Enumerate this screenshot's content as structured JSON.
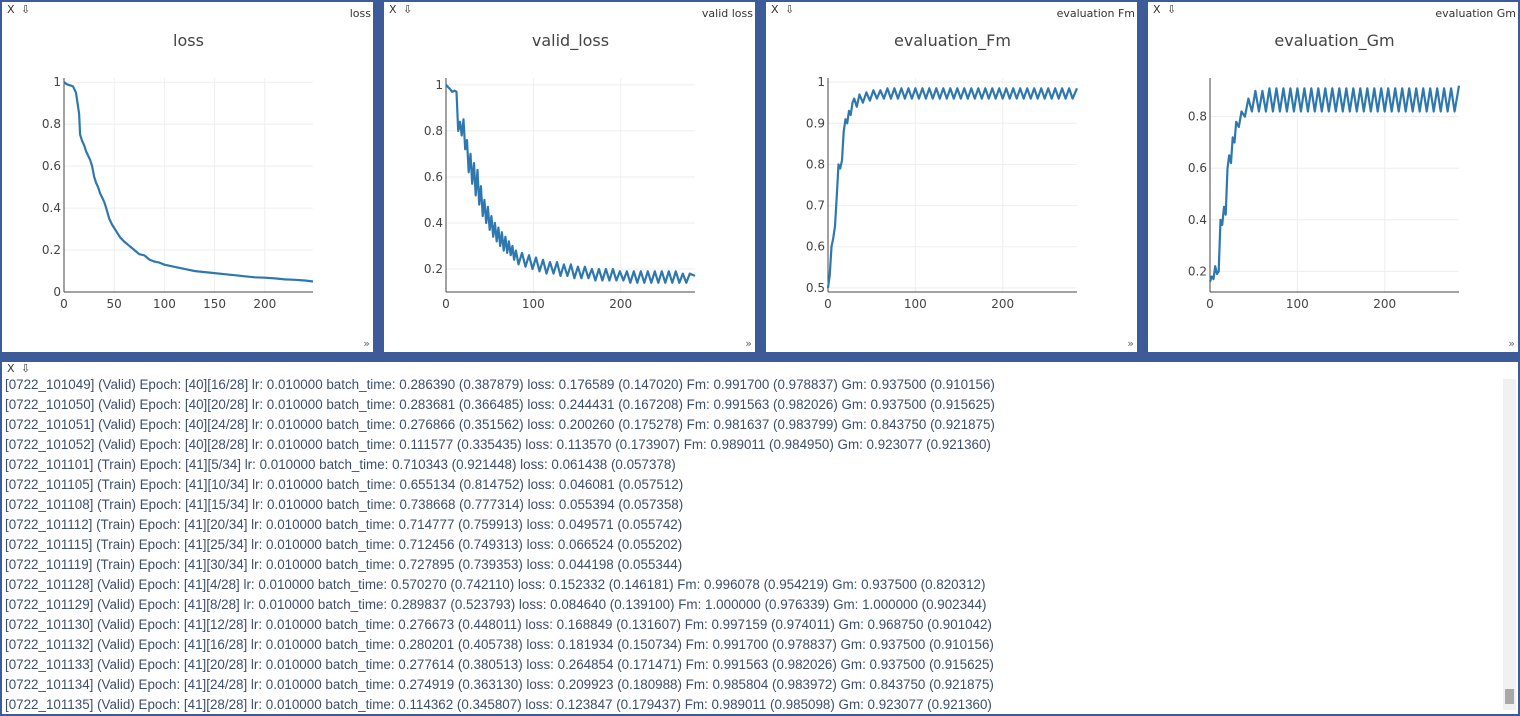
{
  "panes": {
    "close_label": "X",
    "download_label": "⇩",
    "resize_label": "»"
  },
  "charts": [
    {
      "id": "loss",
      "title": "loss"
    },
    {
      "id": "valid  loss",
      "title": "valid_loss"
    },
    {
      "id": "evaluation  Fm",
      "title": "evaluation_Fm"
    },
    {
      "id": "evaluation  Gm",
      "title": "evaluation_Gm"
    }
  ],
  "chart_data": [
    {
      "type": "line",
      "title": "loss",
      "xlabel": "",
      "ylabel": "",
      "xlim": [
        0,
        248
      ],
      "ylim": [
        0,
        1.02
      ],
      "xticks": [
        0,
        50,
        100,
        150,
        200
      ],
      "yticks": [
        0,
        0.2,
        0.4,
        0.6,
        0.8,
        1
      ],
      "grid": true,
      "color": "#2e78b0",
      "x": [
        0,
        3,
        6,
        9,
        12,
        15,
        16,
        18,
        20,
        22,
        24,
        26,
        28,
        30,
        32,
        34,
        36,
        38,
        40,
        42,
        45,
        48,
        52,
        56,
        60,
        65,
        70,
        75,
        80,
        85,
        90,
        95,
        100,
        110,
        120,
        130,
        140,
        150,
        160,
        170,
        180,
        190,
        200,
        210,
        220,
        230,
        240,
        248
      ],
      "y": [
        1.0,
        0.99,
        0.985,
        0.98,
        0.95,
        0.85,
        0.75,
        0.72,
        0.7,
        0.67,
        0.65,
        0.63,
        0.6,
        0.55,
        0.52,
        0.5,
        0.47,
        0.45,
        0.43,
        0.4,
        0.35,
        0.32,
        0.29,
        0.26,
        0.24,
        0.22,
        0.2,
        0.18,
        0.175,
        0.155,
        0.145,
        0.14,
        0.13,
        0.12,
        0.11,
        0.1,
        0.095,
        0.09,
        0.085,
        0.08,
        0.075,
        0.07,
        0.068,
        0.065,
        0.06,
        0.058,
        0.055,
        0.05
      ]
    },
    {
      "type": "line",
      "title": "valid_loss",
      "xlabel": "",
      "ylabel": "",
      "xlim": [
        0,
        285
      ],
      "ylim": [
        0.1,
        1.03
      ],
      "xticks": [
        0,
        100,
        200
      ],
      "yticks": [
        0.2,
        0.4,
        0.6,
        0.8,
        1
      ],
      "grid": true,
      "color": "#2e78b0",
      "x": [
        0,
        5,
        7,
        10,
        12,
        14,
        16,
        18,
        20,
        22,
        24,
        26,
        28,
        30,
        32,
        34,
        36,
        38,
        40,
        42,
        44,
        46,
        48,
        50,
        52,
        54,
        56,
        58,
        60,
        62,
        64,
        66,
        68,
        70,
        72,
        74,
        76,
        78,
        80,
        83,
        87,
        91,
        95,
        99,
        103,
        107,
        111,
        115,
        119,
        123,
        127,
        131,
        135,
        139,
        143,
        147,
        151,
        155,
        159,
        163,
        167,
        171,
        175,
        179,
        183,
        187,
        191,
        195,
        199,
        203,
        207,
        211,
        215,
        219,
        223,
        227,
        231,
        235,
        239,
        243,
        247,
        251,
        255,
        259,
        263,
        267,
        271,
        275,
        279,
        285
      ],
      "y": [
        1.0,
        0.98,
        0.97,
        0.975,
        0.97,
        0.8,
        0.84,
        0.78,
        0.85,
        0.72,
        0.76,
        0.62,
        0.7,
        0.57,
        0.66,
        0.52,
        0.63,
        0.48,
        0.56,
        0.43,
        0.5,
        0.4,
        0.47,
        0.37,
        0.43,
        0.34,
        0.4,
        0.32,
        0.38,
        0.3,
        0.36,
        0.28,
        0.34,
        0.27,
        0.32,
        0.26,
        0.3,
        0.24,
        0.28,
        0.22,
        0.27,
        0.21,
        0.26,
        0.2,
        0.25,
        0.19,
        0.24,
        0.18,
        0.23,
        0.18,
        0.23,
        0.17,
        0.22,
        0.17,
        0.22,
        0.16,
        0.21,
        0.16,
        0.21,
        0.16,
        0.2,
        0.15,
        0.2,
        0.15,
        0.2,
        0.15,
        0.2,
        0.15,
        0.19,
        0.15,
        0.19,
        0.14,
        0.19,
        0.14,
        0.19,
        0.14,
        0.19,
        0.14,
        0.19,
        0.14,
        0.19,
        0.14,
        0.19,
        0.14,
        0.19,
        0.14,
        0.18,
        0.14,
        0.18,
        0.17
      ]
    },
    {
      "type": "line",
      "title": "evaluation_Fm",
      "xlabel": "",
      "ylabel": "",
      "xlim": [
        0,
        285
      ],
      "ylim": [
        0.49,
        1.01
      ],
      "xticks": [
        0,
        100,
        200
      ],
      "yticks": [
        0.5,
        0.6,
        0.7,
        0.8,
        0.9,
        1
      ],
      "grid": true,
      "color": "#2e78b0",
      "x": [
        0,
        2,
        4,
        6,
        8,
        10,
        12,
        14,
        16,
        18,
        20,
        22,
        24,
        26,
        28,
        30,
        33,
        36,
        40,
        44,
        48,
        52,
        56,
        60,
        64,
        68,
        72,
        76,
        80,
        84,
        88,
        92,
        96,
        100,
        104,
        108,
        112,
        116,
        120,
        124,
        128,
        132,
        136,
        140,
        144,
        148,
        152,
        156,
        160,
        164,
        168,
        172,
        176,
        180,
        184,
        188,
        192,
        196,
        200,
        204,
        208,
        212,
        216,
        220,
        224,
        228,
        232,
        236,
        240,
        244,
        248,
        252,
        256,
        260,
        264,
        268,
        272,
        276,
        280,
        285
      ],
      "y": [
        0.5,
        0.53,
        0.6,
        0.62,
        0.65,
        0.72,
        0.8,
        0.79,
        0.81,
        0.88,
        0.91,
        0.9,
        0.93,
        0.92,
        0.95,
        0.96,
        0.94,
        0.97,
        0.95,
        0.975,
        0.955,
        0.98,
        0.96,
        0.98,
        0.96,
        0.985,
        0.96,
        0.985,
        0.96,
        0.985,
        0.96,
        0.985,
        0.96,
        0.985,
        0.96,
        0.985,
        0.96,
        0.985,
        0.96,
        0.985,
        0.96,
        0.985,
        0.96,
        0.985,
        0.96,
        0.985,
        0.96,
        0.985,
        0.96,
        0.985,
        0.96,
        0.985,
        0.96,
        0.985,
        0.96,
        0.985,
        0.96,
        0.985,
        0.96,
        0.985,
        0.96,
        0.985,
        0.96,
        0.985,
        0.96,
        0.985,
        0.96,
        0.985,
        0.96,
        0.985,
        0.96,
        0.985,
        0.96,
        0.985,
        0.96,
        0.985,
        0.96,
        0.985,
        0.96,
        0.985
      ]
    },
    {
      "type": "line",
      "title": "evaluation_Gm",
      "xlabel": "",
      "ylabel": "",
      "xlim": [
        0,
        285
      ],
      "ylim": [
        0.12,
        0.95
      ],
      "xticks": [
        0,
        100,
        200
      ],
      "yticks": [
        0.2,
        0.4,
        0.6,
        0.8
      ],
      "grid": true,
      "color": "#2e78b0",
      "x": [
        0,
        2,
        4,
        6,
        8,
        10,
        12,
        14,
        16,
        18,
        20,
        22,
        24,
        26,
        28,
        30,
        33,
        36,
        40,
        44,
        48,
        52,
        56,
        60,
        64,
        68,
        72,
        76,
        80,
        84,
        88,
        92,
        96,
        100,
        104,
        108,
        112,
        116,
        120,
        124,
        128,
        132,
        136,
        140,
        144,
        148,
        152,
        156,
        160,
        164,
        168,
        172,
        176,
        180,
        184,
        188,
        192,
        196,
        200,
        204,
        208,
        212,
        216,
        220,
        224,
        228,
        232,
        236,
        240,
        244,
        248,
        252,
        256,
        260,
        264,
        268,
        272,
        276,
        280,
        285
      ],
      "y": [
        0.16,
        0.18,
        0.17,
        0.22,
        0.19,
        0.2,
        0.4,
        0.38,
        0.45,
        0.42,
        0.6,
        0.65,
        0.62,
        0.72,
        0.7,
        0.78,
        0.76,
        0.82,
        0.8,
        0.87,
        0.82,
        0.9,
        0.82,
        0.9,
        0.82,
        0.91,
        0.82,
        0.91,
        0.82,
        0.91,
        0.82,
        0.91,
        0.82,
        0.91,
        0.82,
        0.91,
        0.82,
        0.91,
        0.82,
        0.91,
        0.82,
        0.91,
        0.82,
        0.91,
        0.82,
        0.91,
        0.82,
        0.91,
        0.82,
        0.91,
        0.82,
        0.91,
        0.82,
        0.91,
        0.82,
        0.91,
        0.82,
        0.91,
        0.82,
        0.91,
        0.82,
        0.91,
        0.82,
        0.91,
        0.82,
        0.91,
        0.82,
        0.91,
        0.82,
        0.91,
        0.82,
        0.91,
        0.82,
        0.91,
        0.82,
        0.91,
        0.82,
        0.91,
        0.82,
        0.92
      ]
    }
  ],
  "log": {
    "lines": [
      "[0722_101049] (Valid) Epoch: [40][16/28] lr: 0.010000 batch_time: 0.286390 (0.387879) loss: 0.176589 (0.147020) Fm: 0.991700 (0.978837) Gm: 0.937500 (0.910156)",
      "[0722_101050] (Valid) Epoch: [40][20/28] lr: 0.010000 batch_time: 0.283681 (0.366485) loss: 0.244431 (0.167208) Fm: 0.991563 (0.982026) Gm: 0.937500 (0.915625)",
      "[0722_101051] (Valid) Epoch: [40][24/28] lr: 0.010000 batch_time: 0.276866 (0.351562) loss: 0.200260 (0.175278) Fm: 0.981637 (0.983799) Gm: 0.843750 (0.921875)",
      "[0722_101052] (Valid) Epoch: [40][28/28] lr: 0.010000 batch_time: 0.111577 (0.335435) loss: 0.113570 (0.173907) Fm: 0.989011 (0.984950) Gm: 0.923077 (0.921360)",
      "[0722_101101] (Train) Epoch: [41][5/34] lr: 0.010000 batch_time: 0.710343 (0.921448) loss: 0.061438 (0.057378)",
      "[0722_101105] (Train) Epoch: [41][10/34] lr: 0.010000 batch_time: 0.655134 (0.814752) loss: 0.046081 (0.057512)",
      "[0722_101108] (Train) Epoch: [41][15/34] lr: 0.010000 batch_time: 0.738668 (0.777314) loss: 0.055394 (0.057358)",
      "[0722_101112] (Train) Epoch: [41][20/34] lr: 0.010000 batch_time: 0.714777 (0.759913) loss: 0.049571 (0.055742)",
      "[0722_101115] (Train) Epoch: [41][25/34] lr: 0.010000 batch_time: 0.712456 (0.749313) loss: 0.066524 (0.055202)",
      "[0722_101119] (Train) Epoch: [41][30/34] lr: 0.010000 batch_time: 0.727895 (0.739353) loss: 0.044198 (0.055344)",
      "[0722_101128] (Valid) Epoch: [41][4/28] lr: 0.010000 batch_time: 0.570270 (0.742110) loss: 0.152332 (0.146181) Fm: 0.996078 (0.954219) Gm: 0.937500 (0.820312)",
      "[0722_101129] (Valid) Epoch: [41][8/28] lr: 0.010000 batch_time: 0.289837 (0.523793) loss: 0.084640 (0.139100) Fm: 1.000000 (0.976339) Gm: 1.000000 (0.902344)",
      "[0722_101130] (Valid) Epoch: [41][12/28] lr: 0.010000 batch_time: 0.276673 (0.448011) loss: 0.168849 (0.131607) Fm: 0.997159 (0.974011) Gm: 0.968750 (0.901042)",
      "[0722_101132] (Valid) Epoch: [41][16/28] lr: 0.010000 batch_time: 0.280201 (0.405738) loss: 0.181934 (0.150734) Fm: 0.991700 (0.978837) Gm: 0.937500 (0.910156)",
      "[0722_101133] (Valid) Epoch: [41][20/28] lr: 0.010000 batch_time: 0.277614 (0.380513) loss: 0.264854 (0.171471) Fm: 0.991563 (0.982026) Gm: 0.937500 (0.915625)",
      "[0722_101134] (Valid) Epoch: [41][24/28] lr: 0.010000 batch_time: 0.274919 (0.363130) loss: 0.209923 (0.180988) Fm: 0.985804 (0.983972) Gm: 0.843750 (0.921875)",
      "[0722_101135] (Valid) Epoch: [41][28/28] lr: 0.010000 batch_time: 0.114362 (0.345807) loss: 0.123847 (0.179437) Fm: 0.989011 (0.985098) Gm: 0.923077 (0.921360)"
    ]
  }
}
